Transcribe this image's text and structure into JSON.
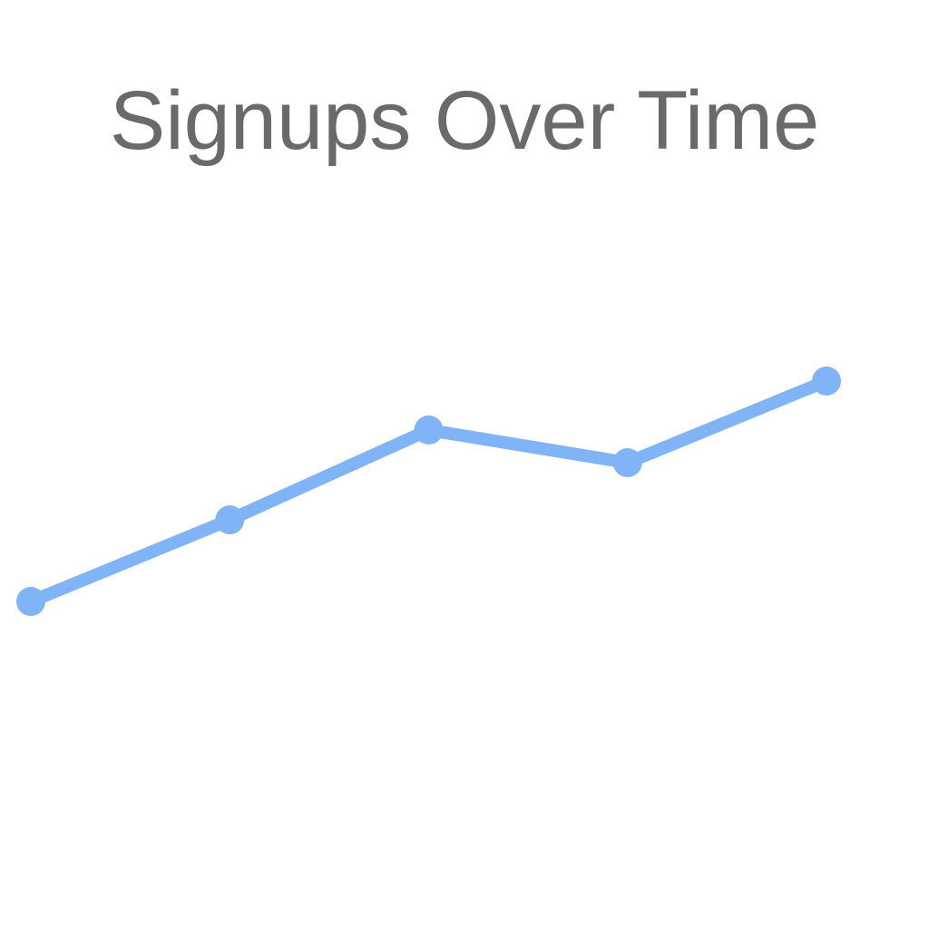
{
  "chart_data": {
    "type": "line",
    "title": "Signups Over Time",
    "xlabel": "",
    "ylabel": "",
    "x": [
      1,
      2,
      3,
      4,
      5
    ],
    "series": [
      {
        "values": [
          30,
          40,
          51,
          47,
          57
        ]
      }
    ],
    "grid": false,
    "colors": {
      "line": "#80b4f7",
      "title": "#6a6a6a"
    }
  }
}
